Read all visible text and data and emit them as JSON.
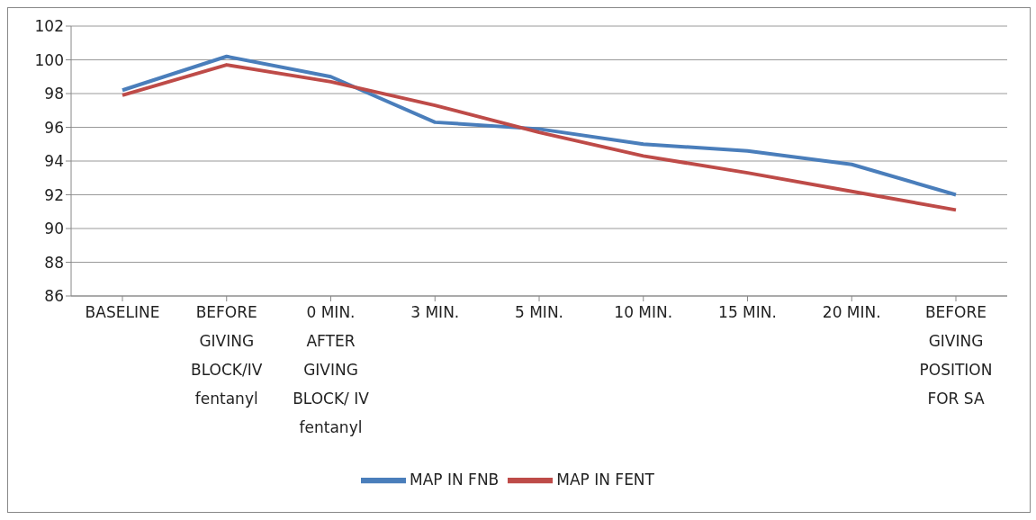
{
  "chart_data": {
    "type": "line",
    "categories": [
      "BASELINE",
      "BEFORE GIVING BLOCK/IV fentanyl",
      "0 MIN. AFTER GIVING BLOCK/ IV fentanyl",
      "3 MIN.",
      "5 MIN.",
      "10 MIN.",
      "15 MIN.",
      "20 MIN.",
      "BEFORE GIVING POSITION FOR SA"
    ],
    "series": [
      {
        "name": "MAP IN FNB",
        "color": "#4a7ebb",
        "values": [
          98.2,
          100.2,
          99.0,
          96.3,
          95.9,
          95.0,
          94.6,
          93.8,
          92.0
        ]
      },
      {
        "name": "MAP IN FENT",
        "color": "#be4b48",
        "values": [
          97.9,
          99.7,
          98.7,
          97.3,
          95.7,
          94.3,
          93.3,
          92.2,
          91.1
        ]
      }
    ],
    "ylim": [
      86,
      102
    ],
    "yticks": [
      86,
      88,
      90,
      92,
      94,
      96,
      98,
      100,
      102
    ],
    "grid": "y",
    "legend": "bottom",
    "marker": "none",
    "line_style": "solid"
  }
}
